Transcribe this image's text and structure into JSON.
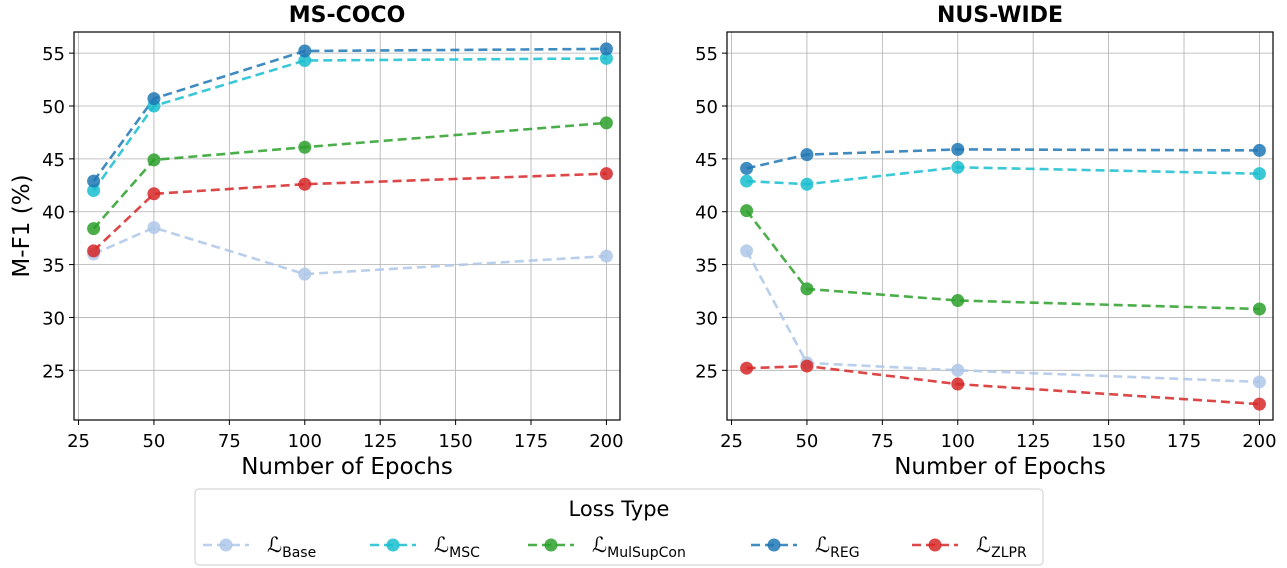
{
  "legend": {
    "title": "Loss Type",
    "entries": [
      {
        "symbol": "ℒ",
        "sub": "Base",
        "color": "#aec7e8"
      },
      {
        "symbol": "ℒ",
        "sub": "MSC",
        "color": "#17becf"
      },
      {
        "symbol": "ℒ",
        "sub": "MulSupCon",
        "color": "#2ca02c"
      },
      {
        "symbol": "ℒ",
        "sub": "REG",
        "color": "#1f77b4"
      },
      {
        "symbol": "ℒ",
        "sub": "ZLPR",
        "color": "#d62728"
      }
    ],
    "placement": "bottom-center"
  },
  "chart_data": [
    {
      "type": "line",
      "title": "MS-COCO",
      "xlabel": "Number of Epochs",
      "ylabel": "M-F1 (%)",
      "xlim": [
        23.5,
        204.5
      ],
      "ylim": [
        20.3,
        57.0
      ],
      "xticks": [
        25,
        50,
        75,
        100,
        125,
        150,
        175,
        200
      ],
      "yticks": [
        25,
        30,
        35,
        40,
        45,
        50,
        55
      ],
      "grid": true,
      "x": [
        30,
        50,
        100,
        200
      ],
      "series": [
        {
          "name": "Base",
          "color": "#aec7e8",
          "values": [
            36.0,
            38.5,
            34.1,
            35.8
          ]
        },
        {
          "name": "MSC",
          "color": "#17becf",
          "values": [
            42.0,
            50.0,
            54.3,
            54.5
          ]
        },
        {
          "name": "MulSupCon",
          "color": "#2ca02c",
          "values": [
            38.4,
            44.9,
            46.1,
            48.4
          ]
        },
        {
          "name": "REG",
          "color": "#1f77b4",
          "values": [
            42.9,
            50.7,
            55.2,
            55.4
          ]
        },
        {
          "name": "ZLPR",
          "color": "#d62728",
          "values": [
            36.3,
            41.7,
            42.6,
            43.6
          ]
        }
      ]
    },
    {
      "type": "line",
      "title": "NUS-WIDE",
      "xlabel": "Number of Epochs",
      "ylabel": "",
      "xlim": [
        23.5,
        204.5
      ],
      "ylim": [
        20.3,
        57.0
      ],
      "xticks": [
        25,
        50,
        75,
        100,
        125,
        150,
        175,
        200
      ],
      "yticks": [
        25,
        30,
        35,
        40,
        45,
        50,
        55
      ],
      "grid": true,
      "x": [
        30,
        50,
        100,
        200
      ],
      "series": [
        {
          "name": "Base",
          "color": "#aec7e8",
          "values": [
            36.3,
            25.7,
            25.0,
            23.9
          ]
        },
        {
          "name": "MSC",
          "color": "#17becf",
          "values": [
            42.9,
            42.6,
            44.2,
            43.6
          ]
        },
        {
          "name": "MulSupCon",
          "color": "#2ca02c",
          "values": [
            40.1,
            32.7,
            31.6,
            30.8
          ]
        },
        {
          "name": "REG",
          "color": "#1f77b4",
          "values": [
            44.1,
            45.4,
            45.9,
            45.8
          ]
        },
        {
          "name": "ZLPR",
          "color": "#d62728",
          "values": [
            25.2,
            25.4,
            23.7,
            21.8
          ]
        }
      ]
    }
  ]
}
